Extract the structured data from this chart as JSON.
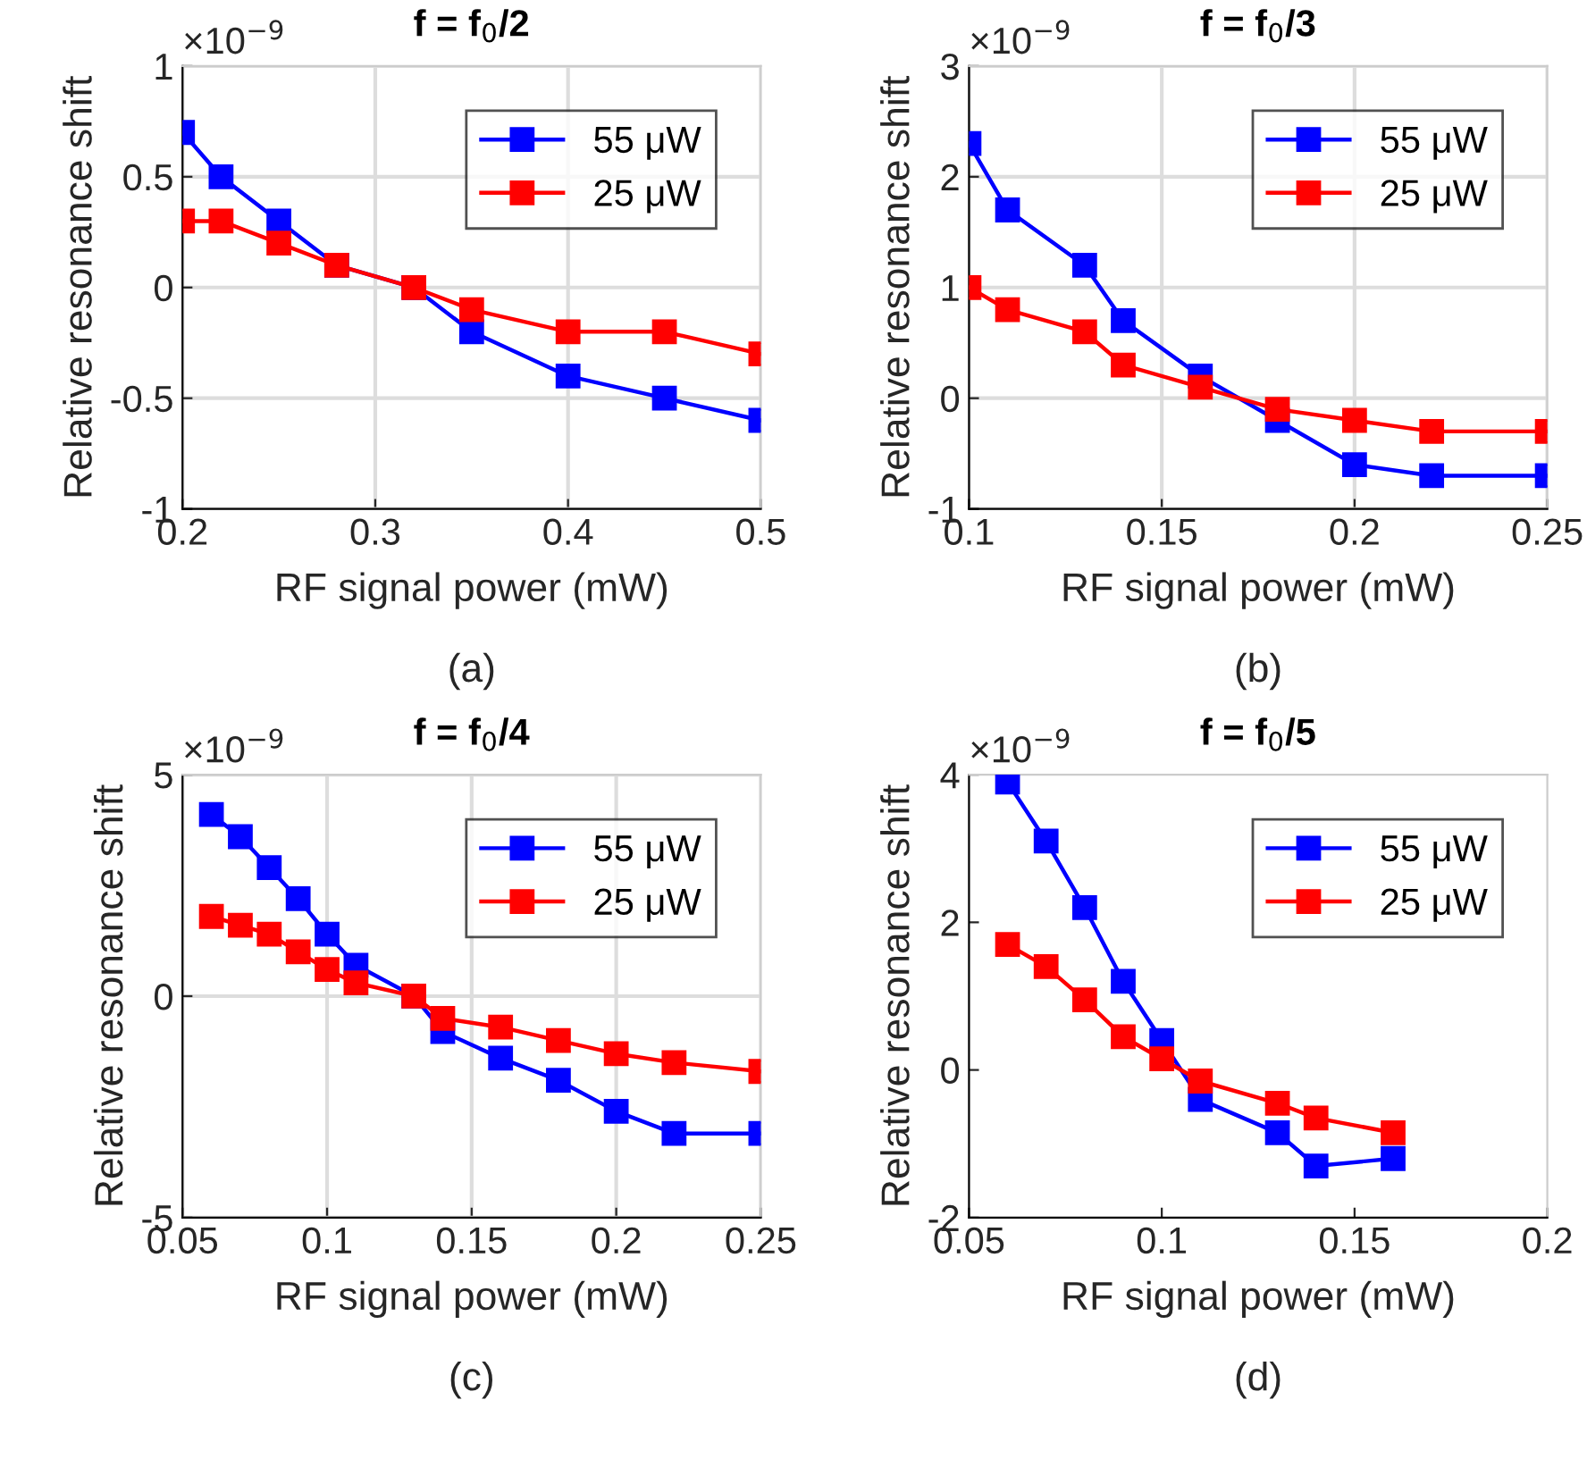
{
  "chart_data": [
    {
      "type": "line",
      "title": "f = f$_{0}$/2",
      "xlabel": "RF signal power (mW)",
      "ylabel": "Relative resonance shift",
      "annotations": [
        "×10$^{−9}$",
        "(a)"
      ],
      "x": [
        0.2,
        0.22,
        0.25,
        0.28,
        0.32,
        0.35,
        0.4,
        0.45,
        0.5
      ],
      "series": [
        {
          "name": "55 μW",
          "color": "#0000ff",
          "values": [
            0.7,
            0.5,
            0.3,
            0.1,
            0,
            -0.2,
            -0.4,
            -0.5,
            -0.6
          ]
        },
        {
          "name": "25 μW",
          "color": "#ff0000",
          "values": [
            0.3,
            0.3,
            0.2,
            0.1,
            0,
            -0.1,
            -0.2,
            -0.2,
            -0.3
          ]
        }
      ],
      "xlim": [
        0.2,
        0.5
      ],
      "xticks": [
        0.2,
        0.3,
        0.4,
        0.5
      ],
      "ylim": [
        -1,
        1
      ],
      "yticks": [
        -1,
        -0.5,
        0,
        0.5,
        1
      ],
      "grid": true,
      "legend": "top right",
      "marker": "square",
      "line_style": "solid"
    },
    {
      "type": "line",
      "title": "f = f$_{0}$/3",
      "xlabel": "RF signal power (mW)",
      "ylabel": "Relative resonance shift",
      "annotations": [
        "×10$^{−9}$",
        "(b)"
      ],
      "x": [
        0.1,
        0.11,
        0.13,
        0.14,
        0.16,
        0.18,
        0.2,
        0.22,
        0.25
      ],
      "series": [
        {
          "name": "55 μW",
          "color": "#0000ff",
          "values": [
            2.3,
            1.7,
            1.2,
            0.7,
            0.2,
            -0.2,
            -0.6,
            -0.7,
            -0.7
          ]
        },
        {
          "name": "25 μW",
          "color": "#ff0000",
          "values": [
            1.0,
            0.8,
            0.6,
            0.3,
            0.1,
            -0.1,
            -0.2,
            -0.3,
            -0.3
          ]
        }
      ],
      "xlim": [
        0.1,
        0.25
      ],
      "xticks": [
        0.1,
        0.15,
        0.2,
        0.25
      ],
      "ylim": [
        -1,
        3
      ],
      "yticks": [
        -1,
        0,
        1,
        2,
        3
      ],
      "grid": true,
      "legend": "top right",
      "marker": "square",
      "line_style": "solid"
    },
    {
      "type": "line",
      "title": "f = f$_{0}$/4",
      "xlabel": "RF signal power (mW)",
      "ylabel": "Relative resonance shift",
      "annotations": [
        "×10$^{−9}$",
        "(c)"
      ],
      "x": [
        0.06,
        0.07,
        0.08,
        0.09,
        0.1,
        0.11,
        0.13,
        0.14,
        0.16,
        0.18,
        0.2,
        0.22,
        0.25
      ],
      "series": [
        {
          "name": "55 μW",
          "color": "#0000ff",
          "values": [
            4.1,
            3.6,
            2.9,
            2.2,
            1.4,
            0.7,
            0,
            -0.8,
            -1.4,
            -1.9,
            -2.6,
            -3.1,
            -3.1
          ]
        },
        {
          "name": "25 μW",
          "color": "#ff0000",
          "values": [
            1.8,
            1.6,
            1.4,
            1.0,
            0.6,
            0.3,
            0,
            -0.5,
            -0.7,
            -1.0,
            -1.3,
            -1.5,
            -1.7
          ]
        }
      ],
      "xlim": [
        0.05,
        0.25
      ],
      "xticks": [
        0.05,
        0.1,
        0.15,
        0.2,
        0.25
      ],
      "ylim": [
        -5,
        5
      ],
      "yticks": [
        -5,
        0,
        5
      ],
      "grid": true,
      "legend": "top right",
      "marker": "square",
      "line_style": "solid"
    },
    {
      "type": "line",
      "title": "f = f$_{0}$/5",
      "xlabel": "RF signal power (mW)",
      "ylabel": "Relative resonance shift",
      "annotations": [
        "×10$^{−9}$",
        "(d)"
      ],
      "x": [
        0.06,
        0.07,
        0.08,
        0.09,
        0.1,
        0.11,
        0.13,
        0.14,
        0.16
      ],
      "series": [
        {
          "name": "55 μW",
          "color": "#0000ff",
          "values": [
            3.9,
            3.1,
            2.2,
            1.2,
            0.4,
            -0.4,
            -0.85,
            -1.3,
            -1.2
          ]
        },
        {
          "name": "25 μW",
          "color": "#ff0000",
          "values": [
            1.7,
            1.4,
            0.95,
            0.45,
            0.15,
            -0.15,
            -0.45,
            -0.65,
            -0.85
          ]
        }
      ],
      "xlim": [
        0.05,
        0.2
      ],
      "xticks": [
        0.05,
        0.1,
        0.15,
        0.2
      ],
      "ylim": [
        -2,
        4
      ],
      "yticks": [
        -2,
        0,
        2,
        4
      ],
      "grid": false,
      "legend": "top right",
      "marker": "square",
      "line_style": "solid"
    }
  ]
}
